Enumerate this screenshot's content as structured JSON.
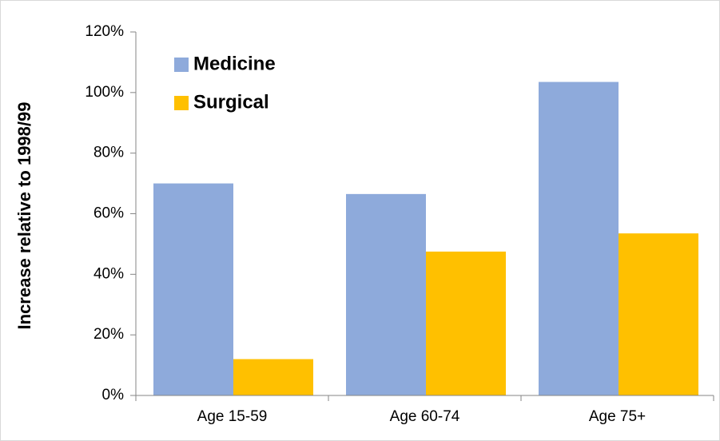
{
  "chart_data": {
    "type": "bar",
    "y_label": "Increase relative to 1998/99",
    "categories": [
      "Age 15-59",
      "Age 60-74",
      "Age 75+"
    ],
    "series": [
      {
        "name": "Medicine",
        "color": "#8eaadb",
        "values": [
          70,
          66.5,
          103.5
        ]
      },
      {
        "name": "Surgical",
        "color": "#ffc000",
        "values": [
          12,
          47.5,
          53.5
        ]
      }
    ],
    "ylim": [
      0,
      120
    ],
    "yticks": [
      {
        "value": 0,
        "label": "0%"
      },
      {
        "value": 20,
        "label": "20%"
      },
      {
        "value": 40,
        "label": "40%"
      },
      {
        "value": 60,
        "label": "60%"
      },
      {
        "value": 80,
        "label": "80%"
      },
      {
        "value": 100,
        "label": "100%"
      },
      {
        "value": 120,
        "label": "120%"
      }
    ],
    "legend": "top-left"
  }
}
